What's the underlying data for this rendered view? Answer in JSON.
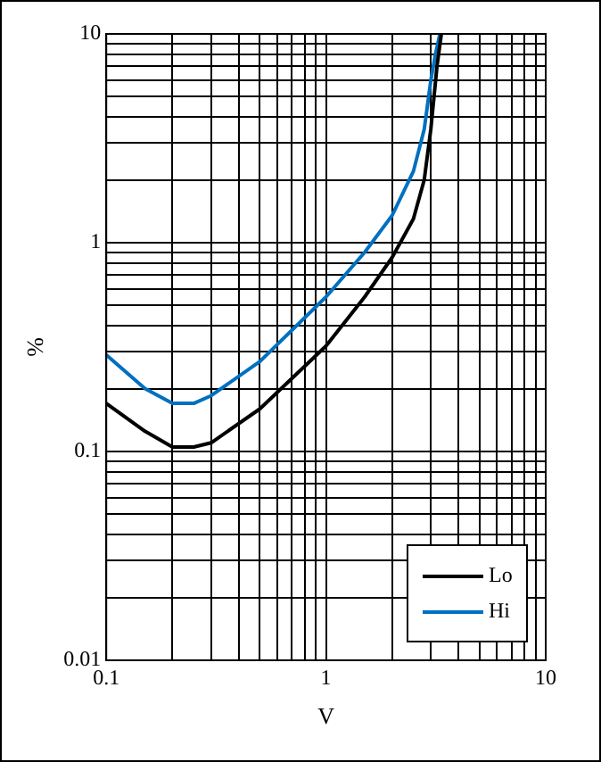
{
  "chart_data": {
    "type": "line",
    "xlabel": "V",
    "ylabel": "%",
    "log": "xy",
    "grid": true,
    "legend": "bottom right",
    "marker": "none",
    "line_style": "solid",
    "xlim": [
      0.1,
      10
    ],
    "ylim": [
      0.01,
      10
    ],
    "xticks": [
      0.1,
      {
        "value": 0.2,
        "label": null
      },
      {
        "value": 0.3,
        "label": null
      },
      {
        "value": 0.4,
        "label": null
      },
      {
        "value": 0.5,
        "label": null
      },
      {
        "value": 0.6,
        "label": null
      },
      {
        "value": 0.7,
        "label": null
      },
      {
        "value": 0.8,
        "label": null
      },
      {
        "value": 0.9,
        "label": null
      },
      1,
      {
        "value": 2,
        "label": null
      },
      {
        "value": 3,
        "label": null
      },
      {
        "value": 4,
        "label": null
      },
      {
        "value": 5,
        "label": null
      },
      {
        "value": 6,
        "label": null
      },
      {
        "value": 7,
        "label": null
      },
      {
        "value": 8,
        "label": null
      },
      {
        "value": 9,
        "label": null
      },
      10
    ],
    "yticks": [
      0.01,
      {
        "value": 0.02,
        "label": null
      },
      {
        "value": 0.03,
        "label": null
      },
      {
        "value": 0.04,
        "label": null
      },
      {
        "value": 0.05,
        "label": null
      },
      {
        "value": 0.06,
        "label": null
      },
      {
        "value": 0.07,
        "label": null
      },
      {
        "value": 0.08,
        "label": null
      },
      {
        "value": 0.09,
        "label": null
      },
      0.1,
      {
        "value": 0.2,
        "label": null
      },
      {
        "value": 0.3,
        "label": null
      },
      {
        "value": 0.4,
        "label": null
      },
      {
        "value": 0.5,
        "label": null
      },
      {
        "value": 0.6,
        "label": null
      },
      {
        "value": 0.7,
        "label": null
      },
      {
        "value": 0.8,
        "label": null
      },
      {
        "value": 0.9,
        "label": null
      },
      1,
      {
        "value": 2,
        "label": null
      },
      {
        "value": 3,
        "label": null
      },
      {
        "value": 4,
        "label": null
      },
      {
        "value": 5,
        "label": null
      },
      {
        "value": 6,
        "label": null
      },
      {
        "value": 7,
        "label": null
      },
      {
        "value": 8,
        "label": null
      },
      {
        "value": 9,
        "label": null
      },
      10
    ],
    "series": [
      {
        "name": "Lo",
        "color": "#000000",
        "x": [
          0.1,
          0.15,
          0.2,
          0.25,
          0.3,
          0.5,
          1,
          1.5,
          2,
          2.5,
          2.8,
          3,
          3.2,
          3.35
        ],
        "values": [
          0.17,
          0.125,
          0.105,
          0.105,
          0.11,
          0.16,
          0.32,
          0.55,
          0.85,
          1.3,
          2,
          3.5,
          7,
          10
        ]
      },
      {
        "name": "Hi",
        "color": "#0070c0",
        "x": [
          0.1,
          0.15,
          0.2,
          0.25,
          0.3,
          0.5,
          1,
          1.5,
          2,
          2.5,
          2.8,
          3,
          3.15,
          3.3
        ],
        "values": [
          0.29,
          0.2,
          0.17,
          0.17,
          0.185,
          0.27,
          0.55,
          0.9,
          1.35,
          2.2,
          3.5,
          6,
          8,
          10
        ]
      }
    ]
  }
}
